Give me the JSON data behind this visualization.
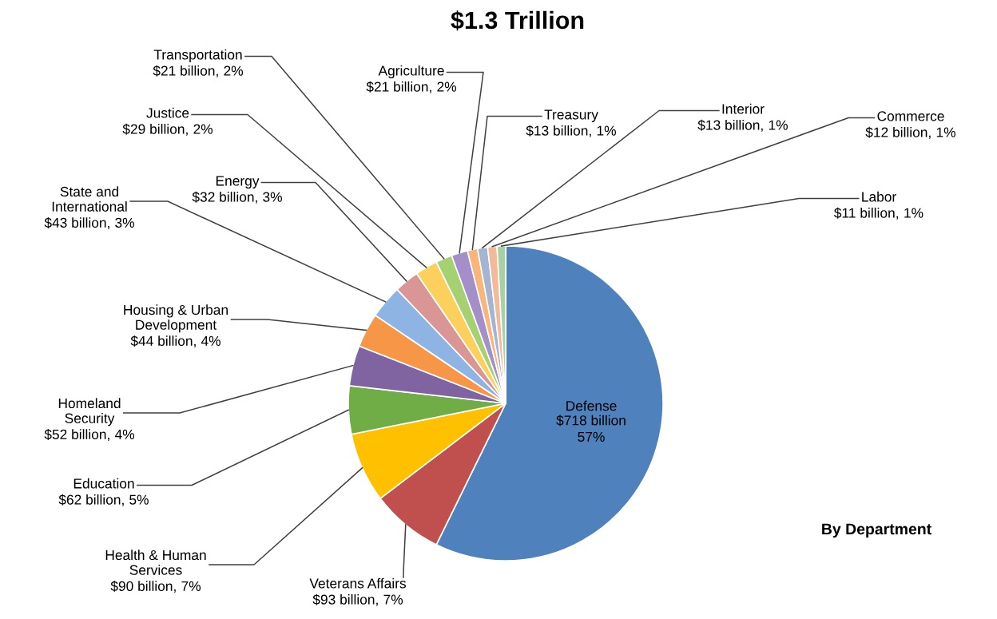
{
  "chart_data": {
    "type": "pie",
    "title": "$1.3 Trillion",
    "categories": [
      "Defense",
      "Veterans Affairs",
      "Health & Human\nServices",
      "Education",
      "Homeland\nSecurity",
      "Housing & Urban\nDevelopment",
      "State and\nInternational",
      "Energy",
      "Justice",
      "Transportation",
      "Agriculture",
      "Treasury",
      "Interior",
      "Commerce",
      "Labor"
    ],
    "values": [
      718,
      93,
      90,
      62,
      52,
      44,
      43,
      32,
      29,
      21,
      21,
      13,
      13,
      12,
      11
    ],
    "value_labels": [
      "$718 billion",
      "$93 billion,",
      "$90 billion,",
      "$62 billion,",
      "$52 billion,",
      "$44 billion,",
      "$43 billion,",
      "$32 billion,",
      "$29 billion,",
      "$21 billion,",
      "$21 billion,",
      "$13 billion,",
      "$13 billion,",
      "$12 billion,",
      "$11 billion,"
    ],
    "colors": [
      "#4f81bd",
      "#c0504d",
      "#ffc000",
      "#70ad47",
      "#8064a2",
      "#f79646",
      "#8db4e2",
      "#d99694",
      "#fcd05c",
      "#a6d172",
      "#a58fc8",
      "#fab57a",
      "#a5b4d0",
      "#f2b99a",
      "#a9cfa5"
    ],
    "annotations": [
      {
        "text": "57%",
        "x": "Defense"
      },
      {
        "text": "7%",
        "x": "Veterans Affairs"
      },
      {
        "text": "7%",
        "x": "Health & Human\nServices"
      },
      {
        "text": "5%",
        "x": "Education"
      },
      {
        "text": "4%",
        "x": "Homeland\nSecurity"
      },
      {
        "text": "4%",
        "x": "Housing & Urban\nDevelopment"
      },
      {
        "text": "3%",
        "x": "State and\nInternational"
      },
      {
        "text": "3%",
        "x": "Energy"
      },
      {
        "text": "2%",
        "x": "Justice"
      },
      {
        "text": "2%",
        "x": "Transportation"
      },
      {
        "text": "2%",
        "x": "Agriculture"
      },
      {
        "text": "1%",
        "x": "Treasury"
      },
      {
        "text": "1%",
        "x": "Interior"
      },
      {
        "text": "1%",
        "x": "Commerce"
      },
      {
        "text": "1%",
        "x": "Labor"
      },
      "By Department"
    ]
  }
}
